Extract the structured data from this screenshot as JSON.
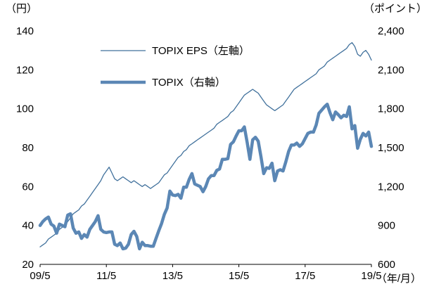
{
  "chart_data": {
    "type": "line",
    "title": "",
    "x_start": "2009/5",
    "x_end": "2019/5",
    "x_interval": "monthly",
    "x_axis_unit": "（年/月）",
    "x_ticks": [
      {
        "i": 0,
        "label": "09/5"
      },
      {
        "i": 24,
        "label": "11/5"
      },
      {
        "i": 48,
        "label": "13/5"
      },
      {
        "i": 72,
        "label": "15/5"
      },
      {
        "i": 96,
        "label": "17/5"
      },
      {
        "i": 120,
        "label": "19/5"
      }
    ],
    "left_axis": {
      "unit": "（円）",
      "range": [
        20,
        140
      ],
      "ticks": [
        {
          "v": 20,
          "label": "20"
        },
        {
          "v": 40,
          "label": "40"
        },
        {
          "v": 60,
          "label": "60"
        },
        {
          "v": 80,
          "label": "80"
        },
        {
          "v": 100,
          "label": "100"
        },
        {
          "v": 120,
          "label": "120"
        },
        {
          "v": 140,
          "label": "140"
        }
      ]
    },
    "right_axis": {
      "unit": "（ポイント）",
      "range": [
        600,
        2400
      ],
      "ticks": [
        {
          "v": 600,
          "label": "600"
        },
        {
          "v": 900,
          "label": "900"
        },
        {
          "v": 1200,
          "label": "1,200"
        },
        {
          "v": 1500,
          "label": "1,500"
        },
        {
          "v": 1800,
          "label": "1,800"
        },
        {
          "v": 2100,
          "label": "2,100"
        },
        {
          "v": 2400,
          "label": "2,400"
        }
      ]
    },
    "legend_position": "top-left-inside",
    "grid": "off",
    "series": [
      {
        "name": "TOPIX EPS（左軸）",
        "axis": "left",
        "color": "#41719c",
        "width": 1.3,
        "values": [
          29,
          30,
          31,
          33,
          34,
          35,
          36,
          38,
          39,
          40,
          42,
          44,
          46,
          47,
          48,
          50,
          51,
          53,
          55,
          57,
          59,
          61,
          63,
          66,
          68,
          70,
          67,
          64,
          63,
          64,
          65,
          64,
          63,
          62,
          63,
          62,
          61,
          60,
          61,
          60,
          59,
          60,
          61,
          62,
          64,
          66,
          67,
          69,
          71,
          73,
          75,
          76,
          78,
          79,
          81,
          82,
          83,
          84,
          85,
          86,
          87,
          88,
          89,
          90,
          92,
          93,
          94,
          95,
          96,
          98,
          99,
          101,
          103,
          105,
          107,
          108,
          109,
          110,
          109,
          108,
          106,
          104,
          102,
          101,
          100,
          99,
          100,
          101,
          102,
          104,
          106,
          108,
          110,
          111,
          112,
          113,
          114,
          115,
          116,
          117,
          118,
          120,
          121,
          122,
          124,
          125,
          126,
          127,
          128,
          129,
          130,
          131,
          133,
          134,
          132,
          128,
          127,
          129,
          130,
          128,
          125
        ]
      },
      {
        "name": "TOPIX（右軸）",
        "axis": "right",
        "color": "#5b87b5",
        "width": 4.5,
        "values": [
          900,
          930,
          950,
          965,
          910,
          895,
          840,
          910,
          900,
          890,
          980,
          990,
          880,
          840,
          850,
          800,
          830,
          810,
          870,
          900,
          930,
          975,
          870,
          850,
          845,
          850,
          850,
          755,
          745,
          765,
          720,
          725,
          755,
          830,
          855,
          815,
          720,
          770,
          745,
          745,
          740,
          740,
          800,
          860,
          915,
          985,
          1035,
          1165,
          1135,
          1130,
          1140,
          1110,
          1195,
          1195,
          1255,
          1300,
          1220,
          1210,
          1200,
          1160,
          1200,
          1260,
          1285,
          1285,
          1325,
          1335,
          1410,
          1410,
          1415,
          1525,
          1545,
          1590,
          1630,
          1630,
          1660,
          1540,
          1410,
          1560,
          1580,
          1550,
          1430,
          1300,
          1345,
          1340,
          1380,
          1245,
          1320,
          1330,
          1320,
          1390,
          1470,
          1520,
          1520,
          1535,
          1510,
          1530,
          1570,
          1610,
          1620,
          1620,
          1675,
          1765,
          1790,
          1815,
          1835,
          1770,
          1715,
          1775,
          1755,
          1730,
          1750,
          1740,
          1815,
          1645,
          1670,
          1495,
          1565,
          1610,
          1590,
          1620,
          1510
        ]
      }
    ]
  }
}
